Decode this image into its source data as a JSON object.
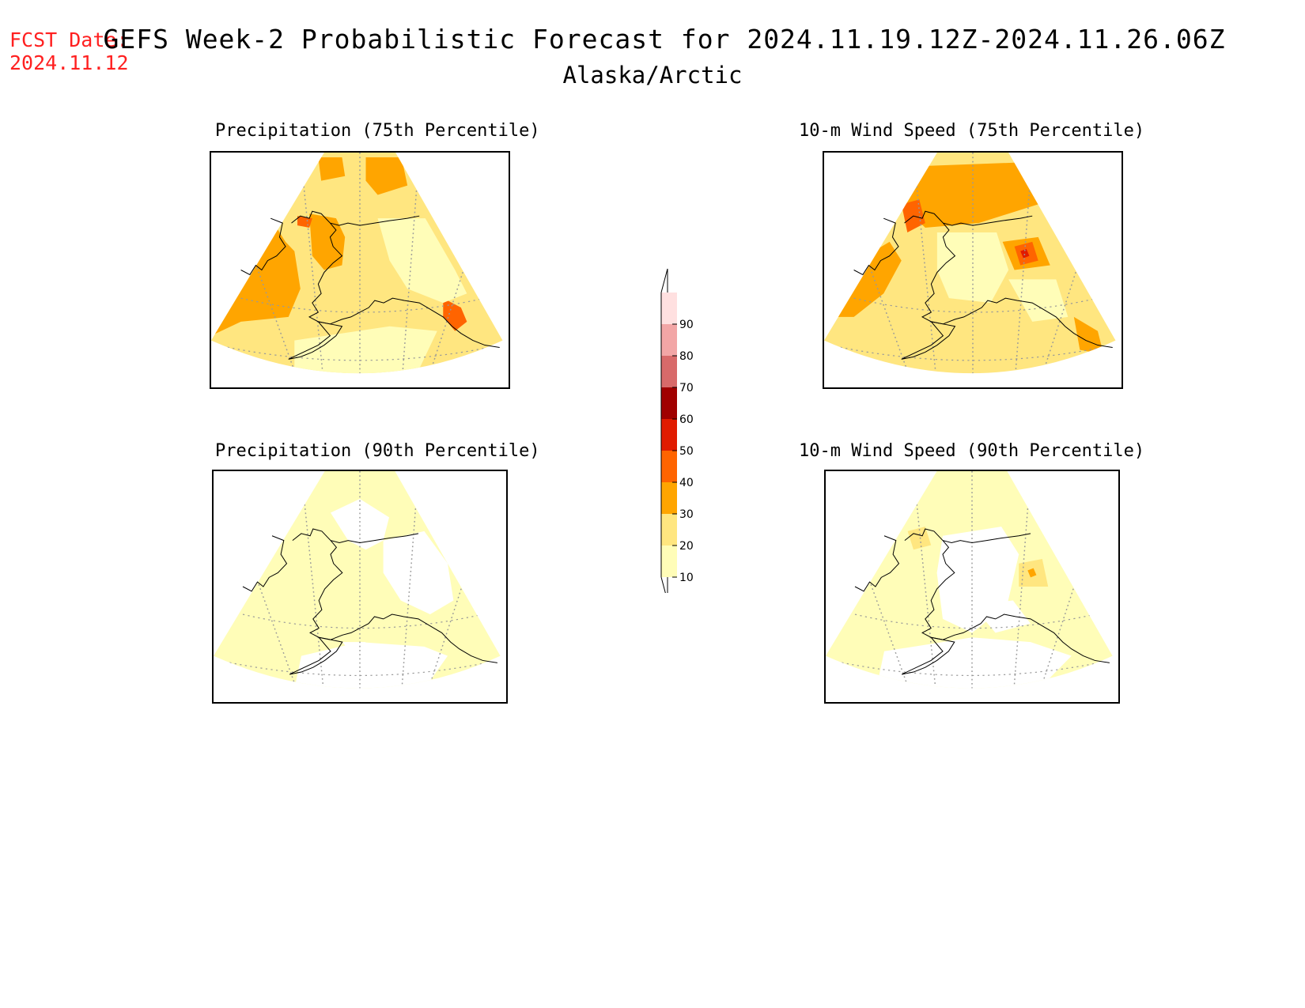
{
  "header": {
    "fcst_label": "FCST Date:",
    "fcst_date": "2024.11.12",
    "title": "GEFS Week-2 Probabilistic Forecast for 2024.11.19.12Z-2024.11.26.06Z",
    "region": "Alaska/Arctic"
  },
  "panels": [
    {
      "id": "precip75",
      "title": "Precipitation (75th Percentile)",
      "base_level": 20
    },
    {
      "id": "wind75",
      "title": "10-m Wind Speed (75th Percentile)",
      "base_level": 20
    },
    {
      "id": "precip90",
      "title": "Precipitation (90th Percentile)",
      "base_level": 10
    },
    {
      "id": "wind90",
      "title": "10-m Wind Speed (90th Percentile)",
      "base_level": 10
    }
  ],
  "colorbar": {
    "levels": [
      10,
      20,
      30,
      40,
      50,
      60,
      70,
      80,
      90
    ],
    "labels": [
      "10",
      "20",
      "30",
      "40",
      "50",
      "60",
      "70",
      "80",
      "90"
    ],
    "colors": [
      "#fffdb8",
      "#ffe680",
      "#ffa500",
      "#ff6400",
      "#e01b00",
      "#a00000",
      "#d86a6a",
      "#f2a6a6",
      "#ffe0e0"
    ]
  }
}
